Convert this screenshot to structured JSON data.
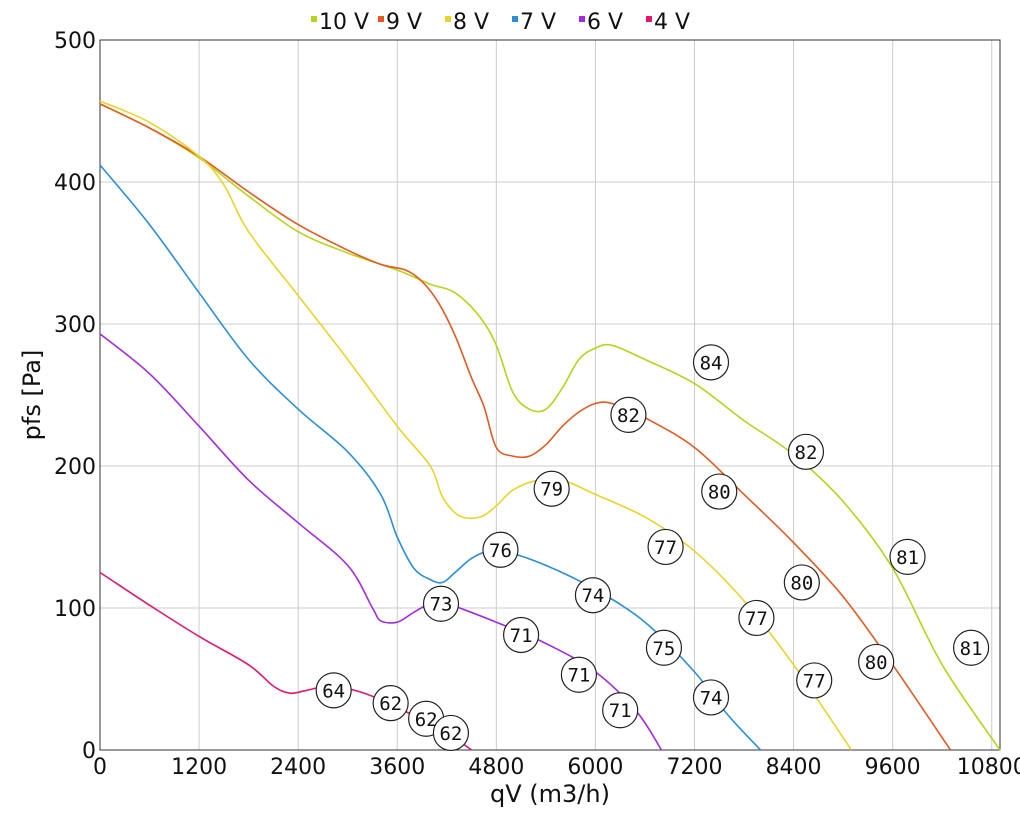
{
  "chart_data": {
    "type": "line",
    "xlabel": "qV (m3/h)",
    "ylabel": "pfs [Pa]",
    "xlim": [
      0,
      10900
    ],
    "ylim": [
      0,
      500
    ],
    "xticks": [
      0,
      1200,
      2400,
      3600,
      4800,
      6000,
      7200,
      8400,
      9600,
      10800
    ],
    "yticks": [
      0,
      100,
      200,
      300,
      400,
      500
    ],
    "grid": true,
    "legend_position": "top",
    "series": [
      {
        "name": "10 V",
        "color": "#b5d41c",
        "points": [
          [
            0,
            455
          ],
          [
            600,
            438
          ],
          [
            1200,
            417
          ],
          [
            1800,
            390
          ],
          [
            2400,
            365
          ],
          [
            3000,
            350
          ],
          [
            3600,
            338
          ],
          [
            4000,
            328
          ],
          [
            4300,
            322
          ],
          [
            4600,
            305
          ],
          [
            4800,
            285
          ],
          [
            5000,
            252
          ],
          [
            5200,
            240
          ],
          [
            5400,
            240
          ],
          [
            5600,
            255
          ],
          [
            5800,
            275
          ],
          [
            6000,
            283
          ],
          [
            6200,
            285
          ],
          [
            6600,
            275
          ],
          [
            7200,
            258
          ],
          [
            7800,
            232
          ],
          [
            8400,
            208
          ],
          [
            9000,
            175
          ],
          [
            9600,
            128
          ],
          [
            10200,
            60
          ],
          [
            10900,
            0
          ]
        ]
      },
      {
        "name": "9 V",
        "color": "#e25a21",
        "points": [
          [
            0,
            455
          ],
          [
            600,
            438
          ],
          [
            1200,
            418
          ],
          [
            1800,
            393
          ],
          [
            2400,
            370
          ],
          [
            3000,
            352
          ],
          [
            3400,
            342
          ],
          [
            3700,
            338
          ],
          [
            3900,
            330
          ],
          [
            4100,
            315
          ],
          [
            4300,
            292
          ],
          [
            4500,
            262
          ],
          [
            4650,
            242
          ],
          [
            4800,
            213
          ],
          [
            5000,
            207
          ],
          [
            5200,
            207
          ],
          [
            5400,
            215
          ],
          [
            5600,
            228
          ],
          [
            5800,
            238
          ],
          [
            6000,
            244
          ],
          [
            6200,
            244
          ],
          [
            6600,
            234
          ],
          [
            7200,
            213
          ],
          [
            7800,
            180
          ],
          [
            8400,
            146
          ],
          [
            9000,
            108
          ],
          [
            9600,
            60
          ],
          [
            10300,
            0
          ]
        ]
      },
      {
        "name": "8 V",
        "color": "#e8d52a",
        "points": [
          [
            0,
            457
          ],
          [
            600,
            442
          ],
          [
            1200,
            418
          ],
          [
            1500,
            398
          ],
          [
            1800,
            365
          ],
          [
            2400,
            320
          ],
          [
            3000,
            275
          ],
          [
            3600,
            228
          ],
          [
            4000,
            200
          ],
          [
            4150,
            178
          ],
          [
            4350,
            165
          ],
          [
            4600,
            164
          ],
          [
            4800,
            172
          ],
          [
            5000,
            183
          ],
          [
            5300,
            190
          ],
          [
            5600,
            190
          ],
          [
            6000,
            180
          ],
          [
            6600,
            164
          ],
          [
            7200,
            140
          ],
          [
            7800,
            105
          ],
          [
            8400,
            60
          ],
          [
            9100,
            0
          ]
        ]
      },
      {
        "name": "7 V",
        "color": "#2a8fd8",
        "points": [
          [
            0,
            412
          ],
          [
            600,
            370
          ],
          [
            1200,
            322
          ],
          [
            1800,
            275
          ],
          [
            2400,
            240
          ],
          [
            3000,
            210
          ],
          [
            3400,
            180
          ],
          [
            3600,
            150
          ],
          [
            3800,
            128
          ],
          [
            4000,
            120
          ],
          [
            4150,
            118
          ],
          [
            4300,
            125
          ],
          [
            4500,
            135
          ],
          [
            4700,
            140
          ],
          [
            4900,
            140
          ],
          [
            5400,
            130
          ],
          [
            6000,
            113
          ],
          [
            6600,
            90
          ],
          [
            7200,
            55
          ],
          [
            7600,
            25
          ],
          [
            8000,
            0
          ]
        ]
      },
      {
        "name": "6 V",
        "color": "#a12be0",
        "points": [
          [
            0,
            293
          ],
          [
            600,
            265
          ],
          [
            1200,
            228
          ],
          [
            1800,
            190
          ],
          [
            2400,
            160
          ],
          [
            3000,
            130
          ],
          [
            3300,
            100
          ],
          [
            3400,
            91
          ],
          [
            3600,
            90
          ],
          [
            3800,
            97
          ],
          [
            4000,
            103
          ],
          [
            4200,
            103
          ],
          [
            4800,
            90
          ],
          [
            5400,
            75
          ],
          [
            6000,
            55
          ],
          [
            6500,
            27
          ],
          [
            6800,
            0
          ]
        ]
      },
      {
        "name": "4 V",
        "color": "#e0196d",
        "points": [
          [
            0,
            125
          ],
          [
            600,
            102
          ],
          [
            1200,
            80
          ],
          [
            1800,
            60
          ],
          [
            2100,
            45
          ],
          [
            2300,
            40
          ],
          [
            2500,
            42
          ],
          [
            2800,
            45
          ],
          [
            3200,
            40
          ],
          [
            3600,
            30
          ],
          [
            4000,
            18
          ],
          [
            4300,
            8
          ],
          [
            4500,
            0
          ]
        ]
      }
    ],
    "annotations": [
      {
        "x": 7400,
        "y": 273,
        "text": "84"
      },
      {
        "x": 8550,
        "y": 210,
        "text": "82"
      },
      {
        "x": 9780,
        "y": 136,
        "text": "81"
      },
      {
        "x": 10550,
        "y": 72,
        "text": "81"
      },
      {
        "x": 6400,
        "y": 236,
        "text": "82"
      },
      {
        "x": 7500,
        "y": 182,
        "text": "80"
      },
      {
        "x": 8500,
        "y": 118,
        "text": "80"
      },
      {
        "x": 9400,
        "y": 62,
        "text": "80"
      },
      {
        "x": 5470,
        "y": 184,
        "text": "79"
      },
      {
        "x": 6850,
        "y": 143,
        "text": "77"
      },
      {
        "x": 7950,
        "y": 93,
        "text": "77"
      },
      {
        "x": 8650,
        "y": 49,
        "text": "77"
      },
      {
        "x": 4850,
        "y": 141,
        "text": "76"
      },
      {
        "x": 5970,
        "y": 109,
        "text": "74"
      },
      {
        "x": 6830,
        "y": 72,
        "text": "75"
      },
      {
        "x": 7400,
        "y": 37,
        "text": "74"
      },
      {
        "x": 4130,
        "y": 103,
        "text": "73"
      },
      {
        "x": 5100,
        "y": 81,
        "text": "71"
      },
      {
        "x": 5800,
        "y": 53,
        "text": "71"
      },
      {
        "x": 6300,
        "y": 28,
        "text": "71"
      },
      {
        "x": 2830,
        "y": 42,
        "text": "64"
      },
      {
        "x": 3520,
        "y": 33,
        "text": "62"
      },
      {
        "x": 3950,
        "y": 22,
        "text": "62"
      },
      {
        "x": 4250,
        "y": 12,
        "text": "62"
      }
    ]
  }
}
